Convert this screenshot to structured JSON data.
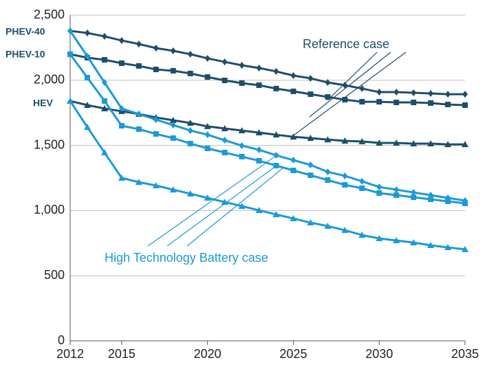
{
  "chart_data": {
    "type": "line",
    "x": [
      2012,
      2013,
      2014,
      2015,
      2016,
      2017,
      2018,
      2019,
      2020,
      2021,
      2022,
      2023,
      2024,
      2025,
      2026,
      2027,
      2028,
      2029,
      2030,
      2031,
      2032,
      2033,
      2034,
      2035
    ],
    "xlim": [
      2012,
      2035
    ],
    "xticks": [
      2012,
      2015,
      2020,
      2025,
      2030,
      2035
    ],
    "ylim": [
      0,
      2500
    ],
    "yticks": [
      0,
      500,
      {
        "value": 1000,
        "label": "1,000"
      },
      {
        "value": 1500,
        "label": "1,500"
      },
      {
        "value": 2000,
        "label": "2,000"
      },
      {
        "value": 2500,
        "label": "2,500"
      }
    ],
    "grid": true,
    "series": [
      {
        "color": "#1d4e6b",
        "marker": "diamond",
        "values": [
          2379,
          2363,
          2337,
          2305,
          2278,
          2247,
          2226,
          2200,
          2168,
          2141,
          2115,
          2094,
          2068,
          2036,
          2015,
          1983,
          1962,
          1936,
          1909,
          1909,
          1904,
          1899,
          1893,
          1893
        ]
      },
      {
        "color": "#1d4e6b",
        "marker": "square",
        "values": [
          2200,
          2173,
          2157,
          2131,
          2110,
          2083,
          2073,
          2052,
          2025,
          1999,
          1978,
          1962,
          1936,
          1915,
          1893,
          1872,
          1851,
          1835,
          1835,
          1830,
          1830,
          1825,
          1814,
          1809
        ]
      },
      {
        "color": "#1d4e6b",
        "marker": "triangle",
        "values": [
          1841,
          1809,
          1783,
          1762,
          1741,
          1714,
          1693,
          1672,
          1646,
          1630,
          1614,
          1598,
          1582,
          1566,
          1556,
          1545,
          1535,
          1530,
          1519,
          1519,
          1514,
          1514,
          1508,
          1508
        ]
      },
      {
        "color": "#1a9ad6",
        "marker": "diamond",
        "values": [
          2379,
          2184,
          1983,
          1783,
          1741,
          1698,
          1656,
          1614,
          1582,
          1540,
          1498,
          1466,
          1424,
          1387,
          1350,
          1297,
          1266,
          1224,
          1181,
          1160,
          1139,
          1118,
          1097,
          1076
        ]
      },
      {
        "color": "#1a9ad6",
        "marker": "square",
        "values": [
          2200,
          2020,
          1841,
          1651,
          1625,
          1588,
          1556,
          1514,
          1477,
          1445,
          1414,
          1382,
          1345,
          1308,
          1271,
          1234,
          1197,
          1171,
          1134,
          1118,
          1102,
          1086,
          1071,
          1055
        ]
      },
      {
        "color": "#1a9ad6",
        "marker": "triangle",
        "values": [
          1841,
          1640,
          1445,
          1250,
          1218,
          1192,
          1160,
          1129,
          1097,
          1065,
          1034,
          1002,
          970,
          939,
          907,
          881,
          849,
          812,
          786,
          770,
          754,
          733,
          717,
          702
        ]
      }
    ],
    "annotations": [
      "PHEV-40",
      "PHEV-10",
      "HEV",
      "Reference case",
      "High Technology Battery case"
    ]
  }
}
